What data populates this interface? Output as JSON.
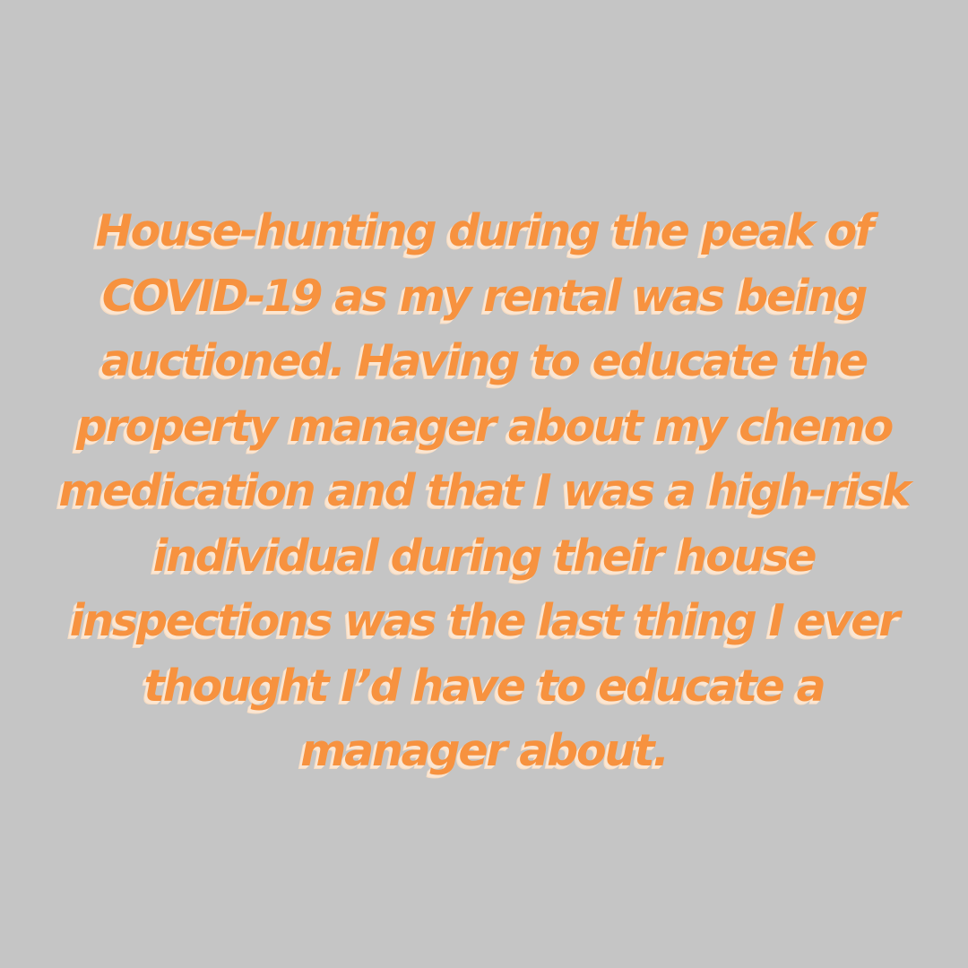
{
  "background_color": "#c5c5c5",
  "text_color": "#f7923f",
  "shadow_color": "#fbe6d2",
  "quote": {
    "lines": [
      "House-hunting during the peak of",
      "COVID-19 as my rental was being",
      "auctioned. Having to educate the",
      "property manager about my chemo",
      "medication and that I was a high-risk",
      "individual during their house",
      "inspections was the last thing I ever",
      "thought I’d have to educate a",
      "manager about."
    ]
  }
}
